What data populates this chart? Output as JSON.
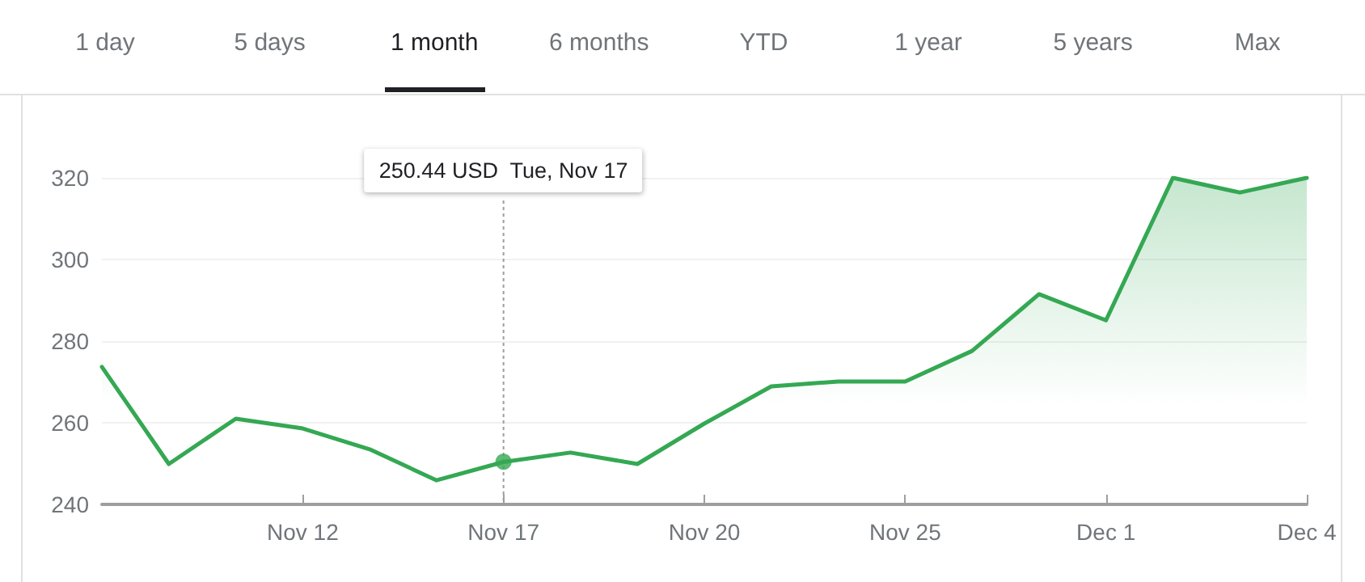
{
  "chart_data": {
    "type": "area",
    "categories": [
      null,
      null,
      null,
      "Nov 12",
      null,
      null,
      "Nov 17",
      null,
      null,
      "Nov 20",
      null,
      null,
      "Nov 25",
      null,
      null,
      "Dec 1",
      null,
      null,
      "Dec 4"
    ],
    "series": [
      {
        "color": "#34a853",
        "values": [
          273.7,
          249.9,
          261.0,
          258.6,
          253.5,
          245.9,
          250.4,
          252.7,
          249.9,
          259.8,
          268.9,
          270.1,
          270.1,
          277.6,
          291.5,
          285.1,
          320.0,
          316.4,
          320.0
        ]
      },
      {
        "type": "scatter",
        "color": "#34a853",
        "marker": "circle",
        "x": [
          "Nov 17"
        ],
        "values": [
          250.44
        ]
      }
    ],
    "ref_lines": [
      {
        "axis": "x",
        "value": "Nov 17",
        "color": "#9e9e9e",
        "line_style": "dotted"
      }
    ],
    "ylim": [
      240,
      320
    ],
    "yticks": [
      240,
      260,
      280,
      300,
      320
    ],
    "grid": "y",
    "marker": "none",
    "line_style": "solid",
    "annotations": [
      "1 day",
      "5 days",
      "1 month",
      "6 months",
      "YTD",
      "1 year",
      "5 years",
      "Max",
      "250.44 USD  Tue, Nov 17"
    ]
  }
}
